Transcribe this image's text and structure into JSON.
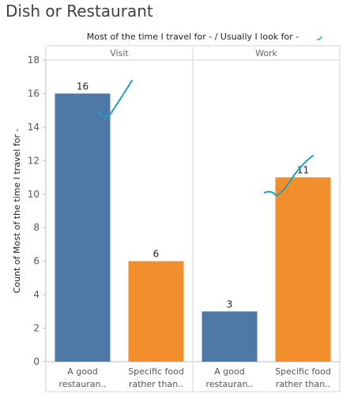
{
  "page_title": "Dish or Restaurant",
  "chart_data": {
    "type": "bar",
    "title": "Dish or Restaurant",
    "column_header_title": "Most of the time I travel for - / Usually I look for -",
    "panels": [
      "Visit",
      "Work"
    ],
    "categories": [
      "A good restauran..",
      "Specific food rather than.."
    ],
    "category_lines": [
      [
        "A good",
        "restauran.."
      ],
      [
        "Specific food",
        "rather than.."
      ]
    ],
    "values": [
      [
        16,
        6
      ],
      [
        3,
        11
      ]
    ],
    "category_colors": [
      "#4e79a7",
      "#f28e2b"
    ],
    "ylabel": "Count of Most of the time I travel for -",
    "ylim": [
      0,
      18
    ],
    "yticks": [
      0,
      2,
      4,
      6,
      8,
      10,
      12,
      14,
      16,
      18
    ],
    "grid": false,
    "annotation_color": "#1a9fc9"
  }
}
